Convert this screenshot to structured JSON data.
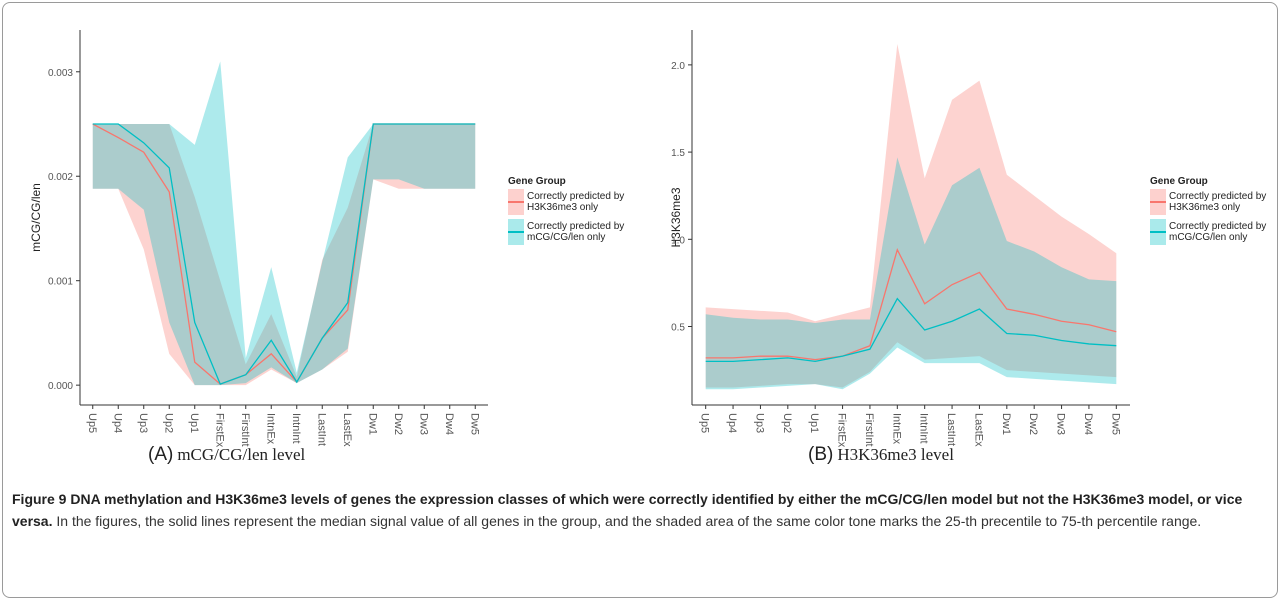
{
  "chart_data": [
    {
      "type": "band-line",
      "ylabel": "mCG/CG/len",
      "panel_label": "(A)",
      "subcaption": "mCG/CG/len level",
      "legend_title": "Gene Group",
      "categories": [
        "Up5",
        "Up4",
        "Up3",
        "Up2",
        "Up1",
        "FirstEx",
        "FirstInt",
        "IntnEx",
        "IntnInt",
        "LastInt",
        "LastEx",
        "Dw1",
        "Dw2",
        "Dw3",
        "Dw4",
        "Dw5"
      ],
      "ylim": [
        -0.00019,
        0.0034
      ],
      "yticks": [
        {
          "value": 0,
          "label": "0.000"
        },
        0.001,
        0.002,
        0.003
      ],
      "series": [
        {
          "name": "Correctly predicted by H3K36me3 only",
          "color": "#f8766d",
          "values": [
            0.0025,
            0.00237,
            0.00223,
            0.00185,
            0.00022,
            1e-05,
            0.0001,
            0.0003,
            3e-05,
            0.00045,
            0.00072,
            0.0025,
            0.0025,
            0.0025,
            0.0025,
            0.0025
          ],
          "lower": [
            0.00188,
            0.00188,
            0.0013,
            0.0003,
            0,
            0,
            0,
            0.00015,
            2e-05,
            0.00015,
            0.00032,
            0.00197,
            0.00188,
            0.00188,
            0.00188,
            0.00188
          ],
          "upper": [
            0.0025,
            0.0025,
            0.0025,
            0.0025,
            0.0018,
            0.001,
            0.0002,
            0.00068,
            8e-05,
            0.0012,
            0.0017,
            0.0025,
            0.0025,
            0.0025,
            0.0025,
            0.0025
          ]
        },
        {
          "name": "Correctly predicted by mCG/CG/len only",
          "color": "#00bfc4",
          "values": [
            0.0025,
            0.0025,
            0.00232,
            0.00208,
            0.0006,
            1e-05,
            0.0001,
            0.00043,
            3e-05,
            0.00045,
            0.00079,
            0.0025,
            0.0025,
            0.0025,
            0.0025,
            0.0025
          ],
          "lower": [
            0.00188,
            0.00188,
            0.00168,
            0.0006,
            0,
            0,
            2e-05,
            0.00017,
            2e-05,
            0.00015,
            0.00035,
            0.00197,
            0.00197,
            0.00188,
            0.00188,
            0.00188
          ],
          "upper": [
            0.0025,
            0.0025,
            0.0025,
            0.0025,
            0.0023,
            0.0031,
            0.00026,
            0.00113,
            0.00012,
            0.00118,
            0.00218,
            0.0025,
            0.0025,
            0.0025,
            0.0025,
            0.0025
          ]
        }
      ]
    },
    {
      "type": "band-line",
      "ylabel": "H3K36me3",
      "panel_label": "(B)",
      "subcaption": "H3K36me3 level",
      "legend_title": "Gene Group",
      "categories": [
        "Up5",
        "Up4",
        "Up3",
        "Up2",
        "Up1",
        "FirstEx",
        "FirstInt",
        "IntnEx",
        "IntnInt",
        "LastInt",
        "LastEx",
        "Dw1",
        "Dw2",
        "Dw3",
        "Dw4",
        "Dw5"
      ],
      "ylim": [
        0.05,
        2.2
      ],
      "yticks": [
        0.5,
        {
          "value": 1,
          "label": "1.0"
        },
        1.5,
        {
          "value": 2,
          "label": "2.0"
        }
      ],
      "series": [
        {
          "name": "Correctly predicted by H3K36me3 only",
          "color": "#f8766d",
          "values": [
            0.32,
            0.32,
            0.33,
            0.33,
            0.31,
            0.33,
            0.39,
            0.94,
            0.63,
            0.74,
            0.81,
            0.6,
            0.57,
            0.53,
            0.51,
            0.47
          ],
          "lower": [
            0.15,
            0.15,
            0.16,
            0.17,
            0.17,
            0.15,
            0.24,
            0.41,
            0.31,
            0.32,
            0.33,
            0.25,
            0.24,
            0.23,
            0.22,
            0.21
          ],
          "upper": [
            0.61,
            0.6,
            0.59,
            0.58,
            0.53,
            0.57,
            0.61,
            2.12,
            1.35,
            1.8,
            1.91,
            1.37,
            1.25,
            1.13,
            1.03,
            0.92
          ]
        },
        {
          "name": "Correctly predicted by mCG/CG/len only",
          "color": "#00bfc4",
          "values": [
            0.3,
            0.3,
            0.31,
            0.32,
            0.3,
            0.33,
            0.37,
            0.66,
            0.48,
            0.53,
            0.6,
            0.46,
            0.45,
            0.42,
            0.4,
            0.39
          ],
          "lower": [
            0.14,
            0.14,
            0.15,
            0.16,
            0.17,
            0.14,
            0.23,
            0.38,
            0.29,
            0.29,
            0.29,
            0.21,
            0.2,
            0.19,
            0.18,
            0.17
          ],
          "upper": [
            0.57,
            0.55,
            0.54,
            0.54,
            0.52,
            0.54,
            0.54,
            1.47,
            0.97,
            1.31,
            1.41,
            0.99,
            0.93,
            0.84,
            0.77,
            0.76
          ]
        }
      ]
    }
  ],
  "caption": {
    "bold": "Figure 9 DNA methylation and H3K36me3 levels of genes the expression classes of which were correctly identified by either the mCG/CG/len model but not the H3K36me3 model, or vice versa.",
    "text": "In the figures, the solid lines represent the median signal value of all genes in the group, and the shaded area of the same color tone marks the 25-th precentile to 75-th percentile range."
  }
}
